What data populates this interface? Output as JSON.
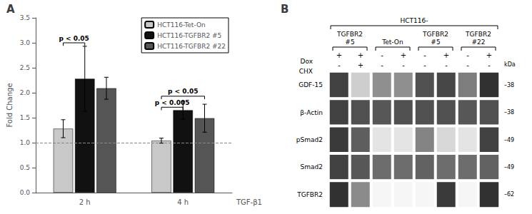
{
  "chart_data": [
    {
      "type": "bar",
      "title": "A",
      "categories": [
        "2 h",
        "4 h"
      ],
      "series": [
        {
          "name": "HCT116-Tet-On",
          "color": "#c8c8c8",
          "values": [
            1.28,
            1.04
          ],
          "errors": [
            0.18,
            0.05
          ]
        },
        {
          "name": "HCT116-TGFBR2 #5",
          "color": "#111111",
          "values": [
            2.28,
            1.65
          ],
          "errors": [
            0.65,
            0.18
          ]
        },
        {
          "name": "HCT116-TGFBR2 #22",
          "color": "#555555",
          "values": [
            2.09,
            1.49
          ],
          "errors": [
            0.22,
            0.28
          ]
        }
      ],
      "ylabel": "Fold Change",
      "xlabel": "TGF-β1",
      "ylim": [
        0,
        3.5
      ],
      "yticks": [
        {
          "value": 0.0,
          "label": "0.0"
        },
        0.5,
        {
          "value": 1.0,
          "label": "1.0"
        },
        1.5,
        {
          "value": 2.0,
          "label": "2.0"
        },
        2.5,
        {
          "value": 3.0,
          "label": "3.0"
        },
        3.5
      ],
      "reference_lines": [
        {
          "y": 1.0,
          "line_style": "dashed"
        }
      ],
      "annotations": [
        {
          "text": "p < 0.05",
          "group": "2 h",
          "from": "HCT116-Tet-On",
          "to": "HCT116-TGFBR2 #5",
          "y": 2.94
        },
        {
          "text": "p < 0.05",
          "group": "4 h",
          "from": "HCT116-Tet-On",
          "to": "HCT116-TGFBR2 #22",
          "y": 1.87
        },
        {
          "text": "p < 0.005",
          "group": "4 h",
          "from": "HCT116-Tet-On",
          "to": "HCT116-TGFBR2 #5",
          "y": 1.65
        }
      ],
      "legend": "upper right",
      "grid": false
    },
    {
      "type": "heatmap",
      "title": "B",
      "header": "HCT116-",
      "col_groups": [
        {
          "label": "TGFBR2\n#5",
          "cols": 2
        },
        {
          "label": "Tet-On",
          "cols": 2
        },
        {
          "label": "TGFBR2\n#5",
          "cols": 2
        },
        {
          "label": "TGFBR2\n#22",
          "cols": 2
        }
      ],
      "lane_rows": [
        {
          "label": "Dox",
          "values": [
            "+",
            "+",
            "-",
            "+",
            "-",
            "+",
            "-",
            "+"
          ]
        },
        {
          "label": "CHX",
          "values": [
            "-",
            "+",
            "-",
            "-",
            "-",
            "-",
            "-",
            "-"
          ]
        }
      ],
      "rows": [
        "GDF-15",
        "β-Actin",
        "pSmad2",
        "Smad2",
        "TGFBR2"
      ],
      "right_labels": [
        "–38",
        "–38",
        "–49",
        "–49",
        "–62"
      ],
      "right_title": "kDa",
      "cells": [
        [
          0.85,
          0.22,
          0.5,
          0.5,
          0.78,
          0.82,
          0.58,
          0.92
        ],
        [
          0.85,
          0.78,
          0.75,
          0.78,
          0.78,
          0.78,
          0.75,
          0.78
        ],
        [
          0.88,
          0.72,
          0.12,
          0.12,
          0.55,
          0.18,
          0.12,
          0.85
        ],
        [
          0.85,
          0.75,
          0.65,
          0.65,
          0.7,
          0.65,
          0.65,
          0.7
        ],
        [
          0.92,
          0.52,
          0.04,
          0.04,
          0.04,
          0.88,
          0.04,
          0.92
        ]
      ],
      "zlim": [
        0,
        1
      ]
    }
  ]
}
